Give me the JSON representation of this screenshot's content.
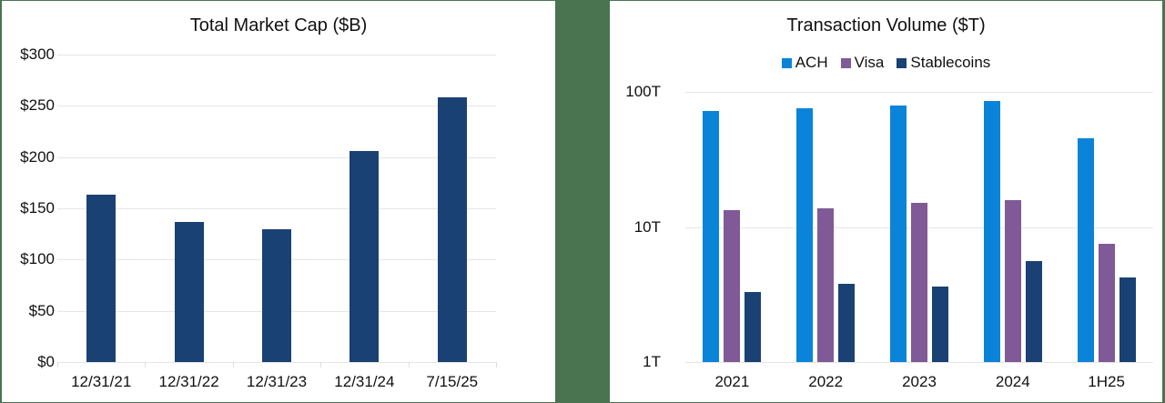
{
  "colors": {
    "background": "#4a7350",
    "panel": "#ffffff",
    "market_cap_bar": "#1a4173",
    "ach": "#0a84d8",
    "visa": "#7f5a97",
    "stablecoins": "#1a4173",
    "gridline": "#e6e6e6"
  },
  "left_chart": {
    "title": "Total Market Cap ($B)",
    "y_ticks": [
      "$300",
      "$250",
      "$200",
      "$150",
      "$100",
      "$50",
      "$0"
    ],
    "x_labels": [
      "12/31/21",
      "12/31/22",
      "12/31/23",
      "12/31/24",
      "7/15/25"
    ]
  },
  "right_chart": {
    "title": "Transaction Volume ($T)",
    "legend": [
      "ACH",
      "Visa",
      "Stablecoins"
    ],
    "y_ticks": [
      "100T",
      "10T",
      "1T"
    ],
    "x_labels": [
      "2021",
      "2022",
      "2023",
      "2024",
      "1H25"
    ]
  },
  "chart_data": [
    {
      "type": "bar",
      "title": "Total Market Cap ($B)",
      "xlabel": "",
      "ylabel": "",
      "categories": [
        "12/31/21",
        "12/31/22",
        "12/31/23",
        "12/31/24",
        "7/15/25"
      ],
      "values": [
        163,
        137,
        130,
        206,
        258
      ],
      "ylim": [
        0,
        300
      ],
      "yticks": [
        0,
        50,
        100,
        150,
        200,
        250,
        300
      ],
      "ytick_labels": [
        "$0",
        "$50",
        "$100",
        "$150",
        "$200",
        "$250",
        "$300"
      ],
      "grid": true,
      "legend": null
    },
    {
      "type": "bar",
      "title": "Transaction Volume ($T)",
      "xlabel": "",
      "ylabel": "",
      "yscale": "log",
      "categories": [
        "2021",
        "2022",
        "2023",
        "2024",
        "1H25"
      ],
      "series": [
        {
          "name": "ACH",
          "values": [
            72,
            76,
            79,
            86,
            45
          ]
        },
        {
          "name": "Visa",
          "values": [
            13.4,
            13.8,
            15.1,
            15.8,
            7.5
          ]
        },
        {
          "name": "Stablecoins",
          "values": [
            3.3,
            3.8,
            3.6,
            5.6,
            4.2
          ]
        }
      ],
      "ylim": [
        1,
        100
      ],
      "yticks": [
        1,
        10,
        100
      ],
      "ytick_labels": [
        "1T",
        "10T",
        "100T"
      ],
      "grid": true,
      "legend_position": "top"
    }
  ]
}
